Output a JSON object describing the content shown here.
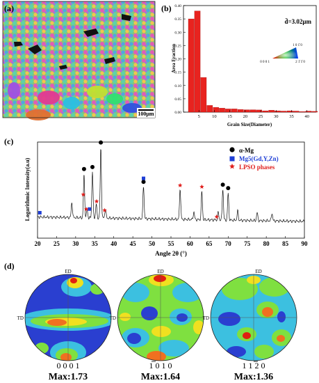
{
  "panel_a": {
    "label": "(a)",
    "scale_bar": "100μm"
  },
  "panel_b": {
    "label": "(b)",
    "annotation": "d̄=3.02μm",
    "ipf_labels": {
      "corner_top": "1 0 1̄ 0",
      "corner_left": "0 0 0 1",
      "corner_right": "2 1̄ 1̄ 0"
    }
  },
  "panel_c": {
    "label": "(c)",
    "legend": [
      {
        "symbol": "circle",
        "label": "α-Mg",
        "color": "#000000"
      },
      {
        "symbol": "square",
        "label": "Mg5(Gd,Y,Zn)",
        "color": "#1f3fd6"
      },
      {
        "symbol": "star",
        "label": "LPSO phases",
        "color": "#e0201e"
      }
    ]
  },
  "panel_d": {
    "label": "(d)",
    "poles": [
      {
        "title": "0 0 0 1",
        "max": "Max:1.73",
        "ed": "ED",
        "td": "TD"
      },
      {
        "title": "1 0 1 0",
        "max": "Max:1.64",
        "ed": "ED",
        "td": "TD"
      },
      {
        "title": "1 1 2 0",
        "max": "Max:1.36",
        "ed": "ED",
        "td": "TD"
      }
    ]
  },
  "chart_data": [
    {
      "type": "bar",
      "title": "",
      "xlabel": "Grain Size(Diameter)",
      "ylabel": "Area Fraction",
      "xlim": [
        0,
        43
      ],
      "ylim": [
        0,
        0.4
      ],
      "x_ticks": [
        5,
        10,
        15,
        20,
        25,
        30,
        35,
        40
      ],
      "y_ticks": [
        0.0,
        0.05,
        0.1,
        0.15,
        0.2,
        0.25,
        0.3,
        0.35,
        0.4
      ],
      "bar_color": "#e8231f",
      "bins": [
        2.5,
        4.5,
        6.5,
        8.5,
        10.5,
        12.5,
        14.5,
        16.5,
        18.5,
        20.5,
        22.5,
        24.5,
        26.5,
        28.5,
        30.5,
        32.5,
        34.5,
        36.5,
        38.5,
        40.5,
        42.5
      ],
      "values": [
        0.35,
        0.38,
        0.13,
        0.025,
        0.018,
        0.015,
        0.012,
        0.012,
        0.01,
        0.009,
        0.009,
        0.008,
        0.005,
        0.007,
        0.005,
        0.004,
        0.005,
        0.004,
        0.002,
        0.004,
        0.003
      ]
    },
    {
      "type": "line",
      "title": "",
      "xlabel": "Angle 2θ (°)",
      "ylabel": "Logarithmic Intensity(a.u)",
      "xlim": [
        20,
        90
      ],
      "x_ticks": [
        20,
        25,
        30,
        35,
        40,
        45,
        50,
        55,
        60,
        65,
        70,
        75,
        80,
        85,
        90
      ],
      "peaks": [
        {
          "x": 29.0,
          "h": 0.2
        },
        {
          "x": 32.2,
          "h": 0.55
        },
        {
          "x": 33.0,
          "h": 0.1
        },
        {
          "x": 34.4,
          "h": 0.6
        },
        {
          "x": 35.4,
          "h": 0.18
        },
        {
          "x": 36.6,
          "h": 0.9
        },
        {
          "x": 37.8,
          "h": 0.12
        },
        {
          "x": 47.8,
          "h": 0.42
        },
        {
          "x": 57.4,
          "h": 0.4
        },
        {
          "x": 61.0,
          "h": 0.1
        },
        {
          "x": 63.1,
          "h": 0.36
        },
        {
          "x": 67.4,
          "h": 0.1
        },
        {
          "x": 68.6,
          "h": 0.4
        },
        {
          "x": 70.0,
          "h": 0.34
        },
        {
          "x": 72.5,
          "h": 0.12
        },
        {
          "x": 77.6,
          "h": 0.1
        },
        {
          "x": 81.5,
          "h": 0.1
        }
      ],
      "markers": [
        {
          "x": 32.2,
          "type": "circle"
        },
        {
          "x": 34.4,
          "type": "circle"
        },
        {
          "x": 36.6,
          "type": "circle"
        },
        {
          "x": 47.8,
          "type": "circle"
        },
        {
          "x": 68.6,
          "type": "circle"
        },
        {
          "x": 70.0,
          "type": "circle"
        },
        {
          "x": 20.6,
          "type": "square"
        },
        {
          "x": 33.6,
          "type": "square"
        },
        {
          "x": 47.8,
          "type": "square"
        },
        {
          "x": 32.0,
          "type": "star"
        },
        {
          "x": 32.8,
          "type": "star"
        },
        {
          "x": 35.5,
          "type": "star"
        },
        {
          "x": 37.6,
          "type": "star"
        },
        {
          "x": 57.4,
          "type": "star"
        },
        {
          "x": 63.1,
          "type": "star"
        },
        {
          "x": 67.0,
          "type": "star"
        }
      ]
    }
  ]
}
